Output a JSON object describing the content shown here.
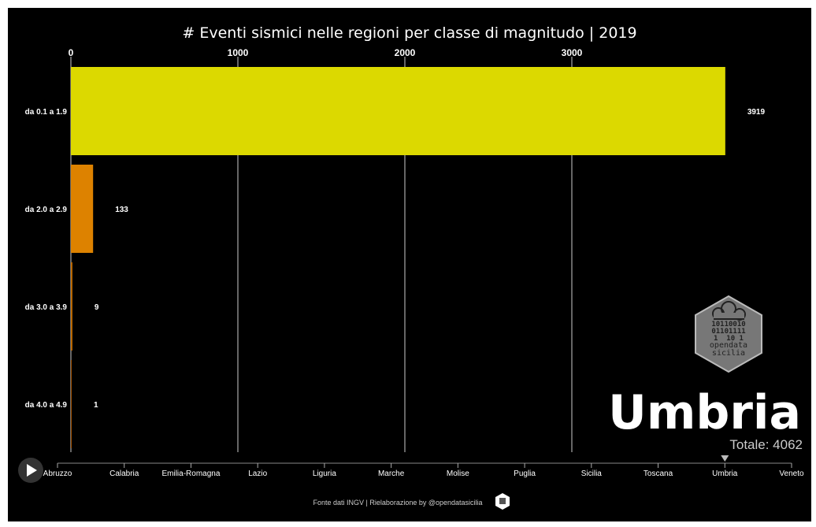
{
  "chart_data": {
    "type": "bar",
    "orientation": "horizontal",
    "title": "# Eventi sismici nelle regioni per classe di magnitudo | 2019",
    "categories": [
      "da 0.1 a 1.9",
      "da 2.0 a 2.9",
      "da 3.0 a 3.9",
      "da 4.0 a 4.9"
    ],
    "values": [
      3919,
      133,
      9,
      1
    ],
    "value_labels": [
      "3919",
      "133",
      "9",
      "1"
    ],
    "colors": [
      "#dcd900",
      "#dd8200",
      "#c06a00",
      "#a05000"
    ],
    "xlim": [
      0,
      4000
    ],
    "xticks": [
      0,
      1000,
      2000,
      3000
    ],
    "xtick_labels": [
      "0",
      "1000",
      "2000",
      "3000"
    ],
    "axis_position": "top",
    "grid": true
  },
  "overlay": {
    "region": "Umbria",
    "total": "Totale: 4062"
  },
  "slider": {
    "selected": "Umbria",
    "items": [
      "Abruzzo",
      "Calabria",
      "Emilia-Romagna",
      "Lazio",
      "Liguria",
      "Marche",
      "Molise",
      "Puglia",
      "Sicilia",
      "Toscana",
      "Umbria",
      "Veneto"
    ]
  },
  "logo": {
    "binary": [
      "10110010",
      "01101111",
      "1  10 1"
    ],
    "line1": "opendata",
    "line2": "sicilia"
  },
  "footer": {
    "text": "Fonte dati INGV | Rielaborazione by @opendatasicilia"
  },
  "icons": {
    "play": "play-icon",
    "footer_logo": "opendatasicilia-hex-icon"
  }
}
